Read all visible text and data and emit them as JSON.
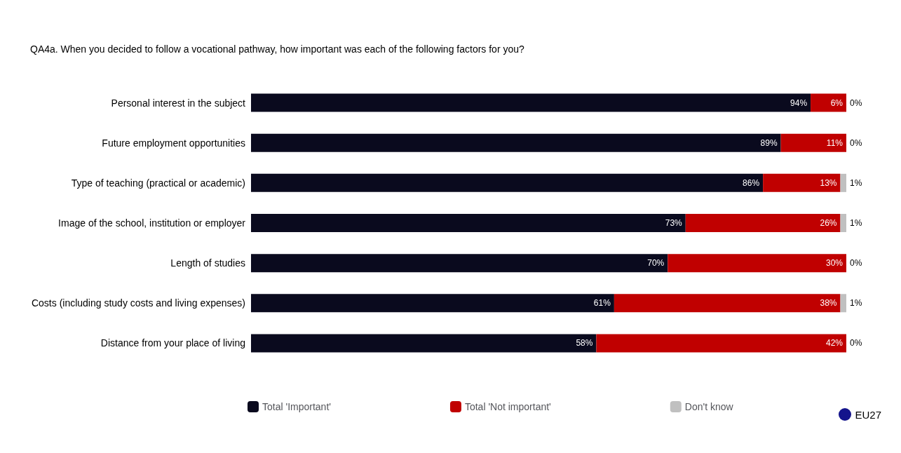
{
  "chart_data": {
    "type": "bar",
    "orientation": "horizontal",
    "stacked": true,
    "title": "QA4a. When you decided to follow a vocational pathway, how important was each of the following factors for you?",
    "categories": [
      "Personal interest in the subject",
      "Future employment opportunities",
      "Type of teaching (practical or academic)",
      "Image of the school, institution or employer",
      "Length of studies",
      "Costs (including study costs and living expenses)",
      "Distance from your place of living"
    ],
    "series": [
      {
        "name": "Total 'Important'",
        "color": "#0a0a1e",
        "values": [
          94,
          89,
          86,
          73,
          70,
          61,
          58
        ],
        "value_labels": [
          "94%",
          "89%",
          "86%",
          "73%",
          "70%",
          "61%",
          "58%"
        ]
      },
      {
        "name": "Total 'Not important'",
        "color": "#c00000",
        "values": [
          6,
          11,
          13,
          26,
          30,
          38,
          42
        ],
        "value_labels": [
          "6%",
          "11%",
          "13%",
          "26%",
          "30%",
          "38%",
          "42%"
        ]
      },
      {
        "name": "Don't know",
        "color": "#c0c0c0",
        "values": [
          0,
          0,
          1,
          1,
          0,
          1,
          0
        ],
        "value_labels": [
          "0%",
          "0%",
          "1%",
          "1%",
          "0%",
          "1%",
          "0%"
        ]
      }
    ],
    "tick_labels": "y",
    "legend": "bottom",
    "annotations": [
      "EU27"
    ]
  }
}
